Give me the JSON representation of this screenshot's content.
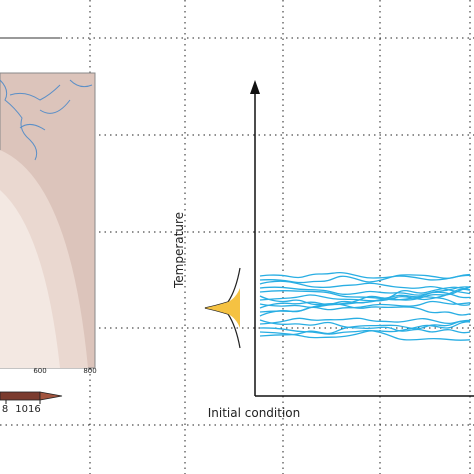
{
  "axes": {
    "y_label": "Temperature",
    "x_label": "Initial condition"
  },
  "map": {
    "tick_labels": [
      "600",
      "800"
    ]
  },
  "colorbar": {
    "labels": [
      "8",
      "1016"
    ]
  }
}
